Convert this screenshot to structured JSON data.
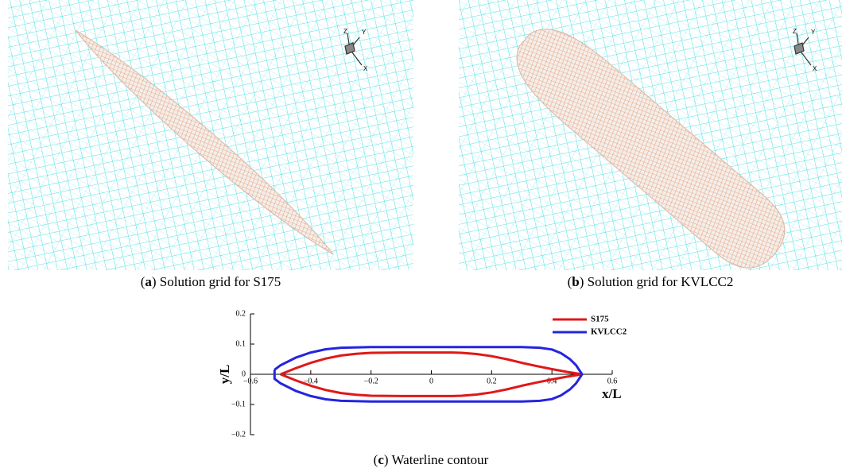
{
  "panels": [
    {
      "caption_open": "(",
      "letter": "a",
      "caption_rest": ") Solution grid for S175",
      "axis_labels": [
        "Z",
        "Y",
        "X"
      ]
    },
    {
      "caption_open": "(",
      "letter": "b",
      "caption_rest": ") Solution grid for KVLCC2",
      "axis_labels": [
        "Z",
        "Y",
        "X"
      ]
    }
  ],
  "chart_data": {
    "type": "line",
    "caption_open": "(",
    "letter": "c",
    "caption_rest": ") Waterline contour",
    "xlabel": "x/L",
    "ylabel": "y/L",
    "xlim": [
      -0.6,
      0.6
    ],
    "ylim": [
      -0.2,
      0.2
    ],
    "xticks": [
      {
        "value": -0.6,
        "label": "−0.6"
      },
      {
        "value": -0.4,
        "label": "−0.4"
      },
      {
        "value": -0.2,
        "label": "−0.2"
      },
      0,
      0.2,
      0.4,
      0.6
    ],
    "yticks": [
      {
        "value": -0.2,
        "label": "−0.2"
      },
      {
        "value": -0.1,
        "label": "−0.1"
      },
      0,
      0.1,
      0.2
    ],
    "legend": "upper right",
    "series": [
      {
        "name": "S175",
        "color": "#e01818",
        "x": [
          -0.5,
          -0.45,
          -0.4,
          -0.35,
          -0.3,
          -0.25,
          -0.2,
          -0.1,
          0,
          0.07,
          0.1,
          0.15,
          0.2,
          0.25,
          0.3,
          0.35,
          0.4,
          0.45,
          0.5,
          0.45,
          0.4,
          0.35,
          0.3,
          0.25,
          0.2,
          0.15,
          0.1,
          0.07,
          0,
          -0.1,
          -0.2,
          -0.25,
          -0.3,
          -0.35,
          -0.4,
          -0.45,
          -0.5
        ],
        "values": [
          0,
          0.02,
          0.038,
          0.052,
          0.062,
          0.068,
          0.071,
          0.072,
          0.072,
          0.072,
          0.071,
          0.067,
          0.06,
          0.05,
          0.038,
          0.027,
          0.017,
          0.008,
          0,
          -0.008,
          -0.017,
          -0.027,
          -0.038,
          -0.05,
          -0.06,
          -0.067,
          -0.071,
          -0.072,
          -0.072,
          -0.072,
          -0.071,
          -0.068,
          -0.062,
          -0.052,
          -0.038,
          -0.02,
          0
        ]
      },
      {
        "name": "KVLCC2",
        "color": "#2424e0",
        "x": [
          -0.52,
          -0.5,
          -0.45,
          -0.4,
          -0.35,
          -0.3,
          -0.2,
          0,
          0.2,
          0.3,
          0.36,
          0.4,
          0.43,
          0.46,
          0.48,
          0.5,
          0.48,
          0.46,
          0.43,
          0.4,
          0.36,
          0.3,
          0.2,
          0,
          -0.2,
          -0.3,
          -0.35,
          -0.4,
          -0.45,
          -0.5,
          -0.52,
          -0.52
        ],
        "values": [
          0.015,
          0.03,
          0.055,
          0.072,
          0.083,
          0.088,
          0.09,
          0.09,
          0.09,
          0.09,
          0.088,
          0.082,
          0.07,
          0.05,
          0.03,
          0,
          -0.03,
          -0.05,
          -0.07,
          -0.082,
          -0.088,
          -0.09,
          -0.09,
          -0.09,
          -0.09,
          -0.088,
          -0.083,
          -0.072,
          -0.055,
          -0.03,
          -0.015,
          0.015
        ]
      }
    ]
  }
}
